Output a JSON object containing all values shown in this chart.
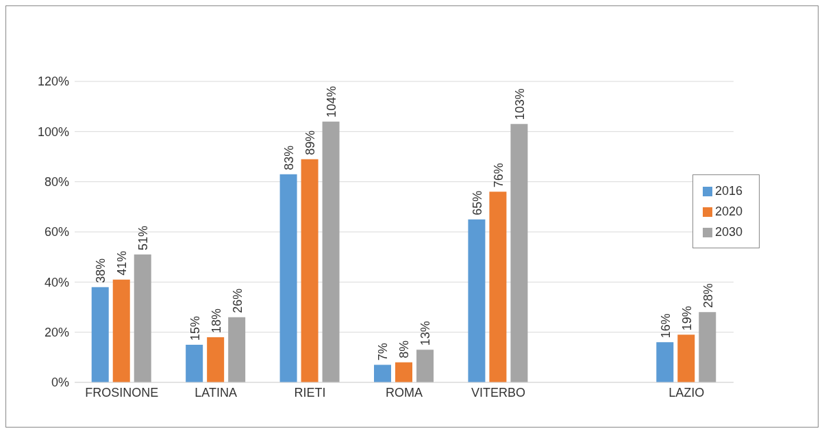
{
  "chart_data": {
    "type": "bar",
    "categories": [
      "FROSINONE",
      "LATINA",
      "RIETI",
      "ROMA",
      "VITERBO",
      null,
      "LAZIO"
    ],
    "series": [
      {
        "name": "2016",
        "color": "#5b9bd5",
        "values": [
          38,
          15,
          83,
          7,
          65,
          null,
          16
        ],
        "value_labels": [
          "38%",
          "15%",
          "83%",
          "7%",
          "65%",
          null,
          "16%"
        ]
      },
      {
        "name": "2020",
        "color": "#ed7d31",
        "values": [
          41,
          18,
          89,
          8,
          76,
          null,
          19
        ],
        "value_labels": [
          "41%",
          "18%",
          "89%",
          "8%",
          "76%",
          null,
          "19%"
        ]
      },
      {
        "name": "2030",
        "color": "#a5a5a5",
        "values": [
          51,
          26,
          104,
          13,
          103,
          null,
          28
        ],
        "value_labels": [
          "51%",
          "26%",
          "104%",
          "13%",
          "103%",
          null,
          "28%"
        ]
      }
    ],
    "ylim": [
      0,
      120
    ],
    "yticks": [
      {
        "value": 0,
        "label": "0%"
      },
      {
        "value": 20,
        "label": "20%"
      },
      {
        "value": 40,
        "label": "40%"
      },
      {
        "value": 60,
        "label": "60%"
      },
      {
        "value": 80,
        "label": "80%"
      },
      {
        "value": 100,
        "label": "100%"
      },
      {
        "value": 120,
        "label": "120%"
      }
    ],
    "grid": "y",
    "legend": "right"
  }
}
